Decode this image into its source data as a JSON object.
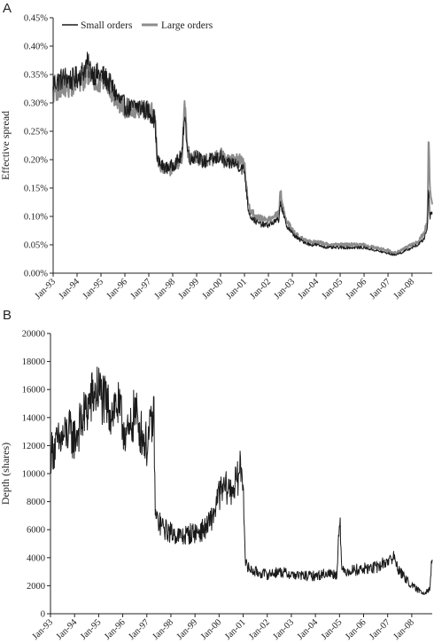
{
  "chart_data": [
    {
      "panel": "A",
      "type": "line",
      "ylabel": "Effective spread",
      "xlabel": "",
      "ylim": [
        0.0,
        0.45
      ],
      "yticks": [
        "0.00%",
        "0.05%",
        "0.10%",
        "0.15%",
        "0.20%",
        "0.25%",
        "0.30%",
        "0.35%",
        "0.40%",
        "0.45%"
      ],
      "ytick_values": [
        0.0,
        0.05,
        0.1,
        0.15,
        0.2,
        0.25,
        0.3,
        0.35,
        0.4,
        0.45
      ],
      "x_categories": [
        "Jan-93",
        "Jan-94",
        "Jan-95",
        "Jan-96",
        "Jan-97",
        "Jan-98",
        "Jan-99",
        "Jan-00",
        "Jan-01",
        "Jan-02",
        "Jan-03",
        "Jan-04",
        "Jan-05",
        "Jan-06",
        "Jan-07",
        "Jan-08"
      ],
      "xlim": [
        1993.0,
        2008.85
      ],
      "grid": false,
      "legend_position": "top-left",
      "series": [
        {
          "name": "Small orders",
          "color": "#1a1a1a",
          "x": [
            1993.0,
            1993.25,
            1993.5,
            1993.75,
            1994.0,
            1994.25,
            1994.4,
            1994.6,
            1994.8,
            1995.0,
            1995.25,
            1995.5,
            1995.75,
            1996.0,
            1996.25,
            1996.5,
            1996.75,
            1997.0,
            1997.1,
            1997.25,
            1997.3,
            1997.35,
            1997.5,
            1997.75,
            1998.0,
            1998.25,
            1998.4,
            1998.5,
            1998.6,
            1998.75,
            1999.0,
            1999.25,
            1999.5,
            1999.75,
            2000.0,
            2000.25,
            2000.5,
            2000.75,
            2001.0,
            2001.15,
            2001.25,
            2001.5,
            2001.75,
            2002.0,
            2002.25,
            2002.45,
            2002.5,
            2002.6,
            2002.75,
            2003.0,
            2003.25,
            2003.5,
            2003.75,
            2004.0,
            2004.5,
            2005.0,
            2005.5,
            2006.0,
            2006.5,
            2007.0,
            2007.25,
            2007.5,
            2007.75,
            2008.0,
            2008.25,
            2008.5,
            2008.65,
            2008.7,
            2008.75,
            2008.85
          ],
          "y": [
            0.335,
            0.34,
            0.345,
            0.34,
            0.345,
            0.355,
            0.37,
            0.355,
            0.35,
            0.35,
            0.34,
            0.325,
            0.305,
            0.295,
            0.29,
            0.295,
            0.29,
            0.285,
            0.28,
            0.27,
            0.24,
            0.2,
            0.19,
            0.185,
            0.19,
            0.2,
            0.21,
            0.29,
            0.22,
            0.2,
            0.21,
            0.195,
            0.2,
            0.2,
            0.205,
            0.19,
            0.195,
            0.19,
            0.18,
            0.115,
            0.1,
            0.09,
            0.085,
            0.085,
            0.09,
            0.095,
            0.13,
            0.105,
            0.085,
            0.07,
            0.06,
            0.055,
            0.05,
            0.05,
            0.045,
            0.045,
            0.045,
            0.045,
            0.04,
            0.035,
            0.032,
            0.035,
            0.04,
            0.045,
            0.05,
            0.06,
            0.08,
            0.16,
            0.1,
            0.11
          ]
        },
        {
          "name": "Large orders",
          "color": "#8c8c8c",
          "x": [
            1993.0,
            1993.25,
            1993.5,
            1993.75,
            1994.0,
            1994.25,
            1994.4,
            1994.6,
            1994.8,
            1995.0,
            1995.25,
            1995.5,
            1995.75,
            1996.0,
            1996.25,
            1996.5,
            1996.75,
            1997.0,
            1997.1,
            1997.25,
            1997.3,
            1997.35,
            1997.5,
            1997.75,
            1998.0,
            1998.25,
            1998.4,
            1998.5,
            1998.6,
            1998.75,
            1999.0,
            1999.25,
            1999.5,
            1999.75,
            2000.0,
            2000.25,
            2000.5,
            2000.75,
            2001.0,
            2001.15,
            2001.25,
            2001.5,
            2001.75,
            2002.0,
            2002.25,
            2002.45,
            2002.5,
            2002.6,
            2002.75,
            2003.0,
            2003.25,
            2003.5,
            2003.75,
            2004.0,
            2004.5,
            2005.0,
            2005.5,
            2006.0,
            2006.5,
            2007.0,
            2007.25,
            2007.5,
            2007.75,
            2008.0,
            2008.25,
            2008.5,
            2008.65,
            2008.7,
            2008.75,
            2008.85
          ],
          "y": [
            0.32,
            0.325,
            0.33,
            0.33,
            0.335,
            0.34,
            0.355,
            0.345,
            0.34,
            0.34,
            0.33,
            0.315,
            0.3,
            0.29,
            0.285,
            0.29,
            0.29,
            0.285,
            0.285,
            0.28,
            0.25,
            0.205,
            0.19,
            0.18,
            0.185,
            0.195,
            0.205,
            0.3,
            0.22,
            0.2,
            0.205,
            0.195,
            0.2,
            0.2,
            0.21,
            0.195,
            0.2,
            0.2,
            0.19,
            0.125,
            0.11,
            0.1,
            0.095,
            0.095,
            0.1,
            0.105,
            0.15,
            0.115,
            0.095,
            0.075,
            0.065,
            0.06,
            0.055,
            0.055,
            0.05,
            0.05,
            0.05,
            0.05,
            0.045,
            0.04,
            0.035,
            0.04,
            0.045,
            0.05,
            0.055,
            0.07,
            0.09,
            0.25,
            0.15,
            0.12
          ]
        }
      ]
    },
    {
      "panel": "B",
      "type": "line",
      "ylabel": "Depth (shares)",
      "xlabel": "",
      "ylim": [
        0,
        20000
      ],
      "yticks": [
        "0",
        "2000",
        "4000",
        "6000",
        "8000",
        "10000",
        "12000",
        "14000",
        "16000",
        "18000",
        "20000"
      ],
      "ytick_values": [
        0,
        2000,
        4000,
        6000,
        8000,
        10000,
        12000,
        14000,
        16000,
        18000,
        20000
      ],
      "x_categories": [
        "Jan-93",
        "Jan-94",
        "Jan-95",
        "Jan-96",
        "Jan-97",
        "Jan-98",
        "Jan-99",
        "Jan-00",
        "Jan-01",
        "Jan-02",
        "Jan-03",
        "Jan-04",
        "Jan-05",
        "Jan-06",
        "Jan-07",
        "Jan-08"
      ],
      "xlim": [
        1993.0,
        2008.85
      ],
      "grid": false,
      "series": [
        {
          "name": "",
          "color": "#1a1a1a",
          "x": [
            1993.0,
            1993.25,
            1993.5,
            1993.75,
            1994.0,
            1994.25,
            1994.5,
            1994.75,
            1995.0,
            1995.25,
            1995.5,
            1995.75,
            1996.0,
            1996.25,
            1996.5,
            1996.75,
            1997.0,
            1997.2,
            1997.3,
            1997.35,
            1997.5,
            1997.75,
            1998.0,
            1998.25,
            1998.5,
            1998.75,
            1999.0,
            1999.25,
            1999.5,
            1999.75,
            2000.0,
            2000.25,
            2000.5,
            2000.75,
            2000.9,
            2001.0,
            2001.1,
            2001.25,
            2001.5,
            2002.0,
            2002.5,
            2003.0,
            2003.5,
            2004.0,
            2004.5,
            2004.9,
            2005.0,
            2005.1,
            2005.5,
            2006.0,
            2006.5,
            2006.75,
            2007.0,
            2007.25,
            2007.5,
            2007.75,
            2008.0,
            2008.25,
            2008.5,
            2008.75,
            2008.85
          ],
          "y": [
            11500,
            12000,
            12500,
            13000,
            12500,
            13500,
            14500,
            15500,
            16000,
            15000,
            14500,
            15000,
            13500,
            12500,
            14500,
            13000,
            12000,
            13500,
            14000,
            7000,
            6500,
            6000,
            5800,
            5600,
            5500,
            5700,
            5800,
            5900,
            6200,
            7000,
            8500,
            9000,
            8800,
            9500,
            10500,
            9500,
            3500,
            3200,
            3000,
            2800,
            3000,
            2800,
            2700,
            2700,
            2900,
            2800,
            7500,
            3000,
            3100,
            3200,
            3300,
            3500,
            3800,
            4000,
            3000,
            2500,
            2000,
            1700,
            1500,
            1800,
            4200
          ]
        }
      ]
    }
  ]
}
